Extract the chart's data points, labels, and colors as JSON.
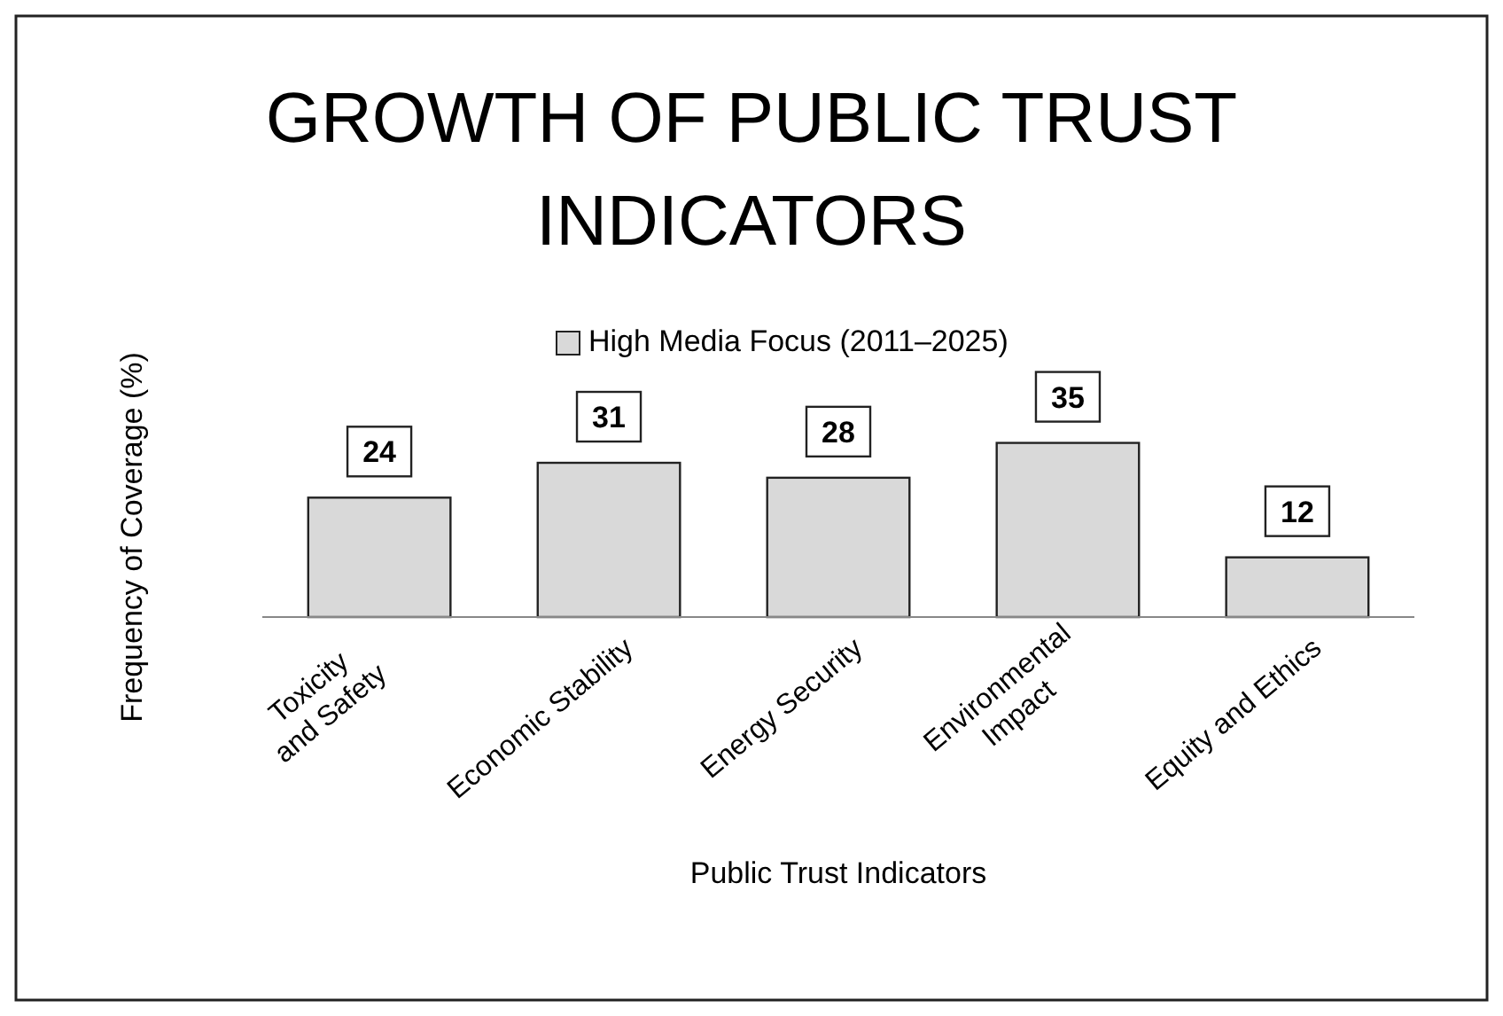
{
  "chart_data": {
    "type": "bar",
    "title": "GROWTH OF PUBLIC TRUST INDICATORS",
    "xlabel": "Public Trust Indicators",
    "ylabel": "Frequency of Coverage (%)",
    "categories": [
      "Toxicity and Safety",
      "Economic Stability",
      "Energy Security",
      "Environmental Impact",
      "Equity and Ethics"
    ],
    "series": [
      {
        "name": "High Media Focus (2011–2025)",
        "color": "#d9d9d9",
        "values": [
          24,
          31,
          28,
          35,
          12
        ]
      }
    ],
    "data_labels": true,
    "legend": "top",
    "grid": false
  }
}
